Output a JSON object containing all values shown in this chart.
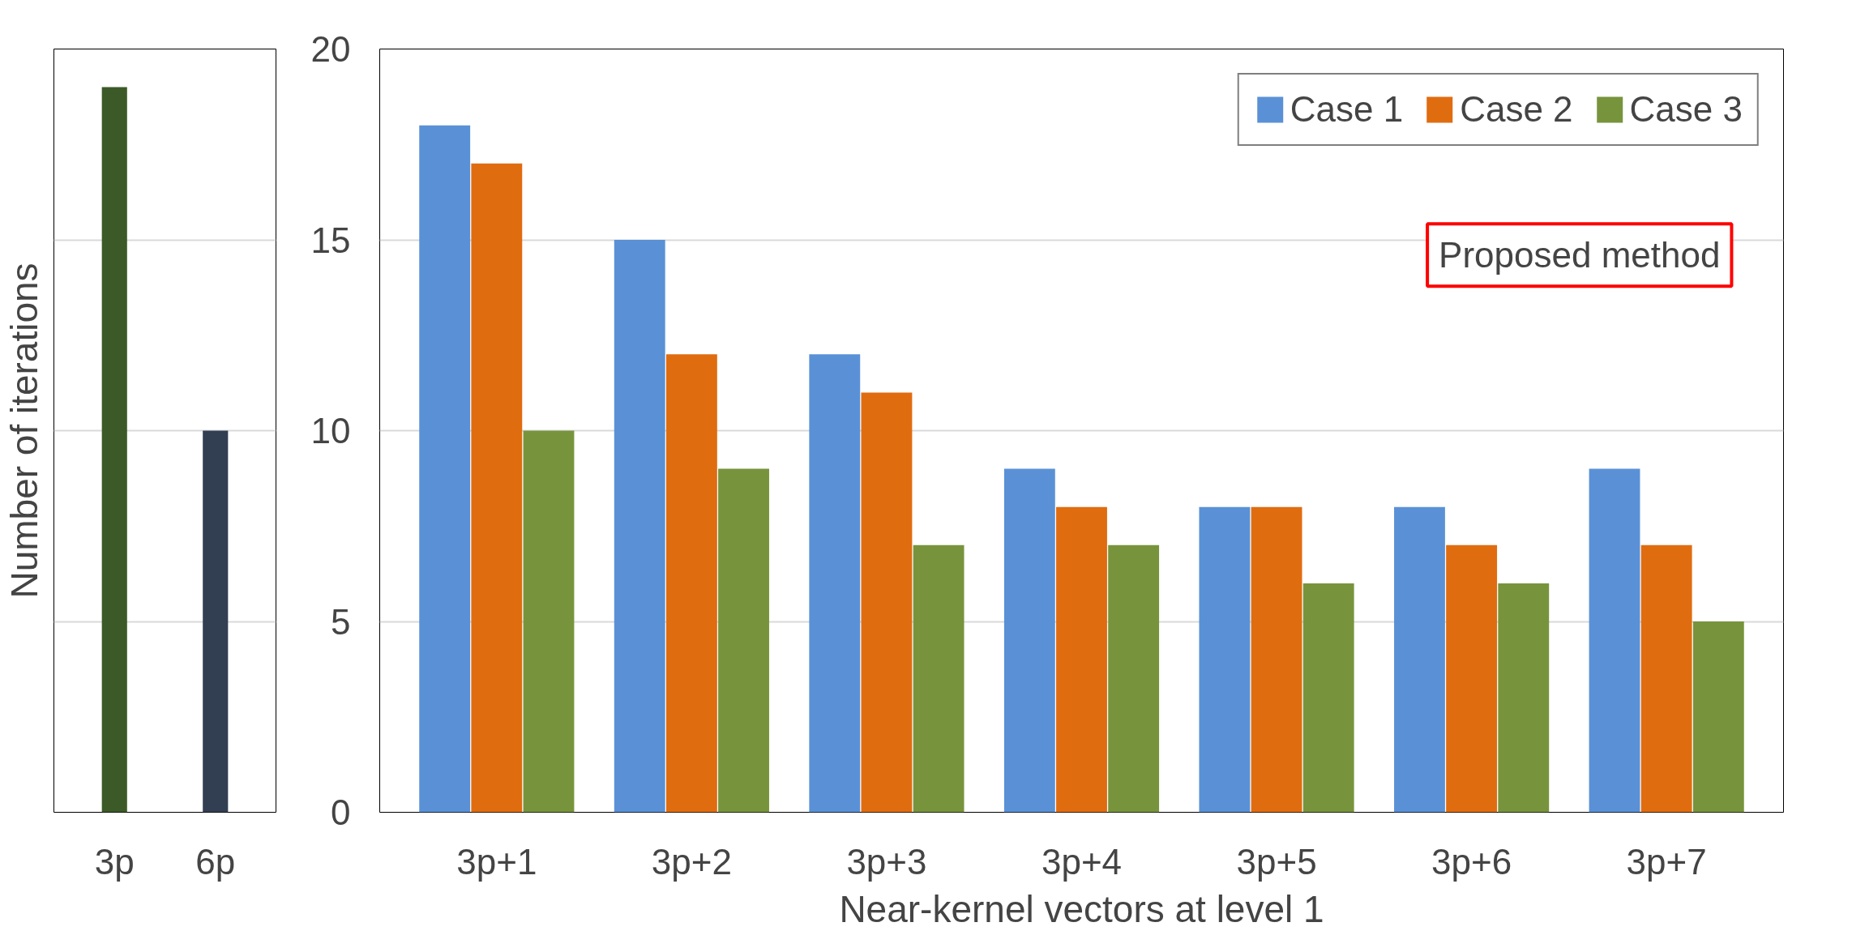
{
  "chart_data": [
    {
      "type": "bar",
      "ylabel": "Number of iterations",
      "categories": [
        "3p",
        "6p"
      ],
      "colors": [
        "#3b5a27",
        "#323f52"
      ],
      "values": [
        19,
        10
      ],
      "ylim": [
        0,
        20
      ],
      "yticks": [
        5,
        10,
        15
      ],
      "tick_labels": "x",
      "grid": "y",
      "legend": false
    },
    {
      "type": "bar",
      "xlabel": "Near-kernel vectors at level 1",
      "categories": [
        "3p+1",
        "3p+2",
        "3p+3",
        "3p+4",
        "3p+5",
        "3p+6",
        "3p+7"
      ],
      "series": [
        {
          "name": "Case 1",
          "color": "#5a91d6",
          "values": [
            18,
            15,
            12,
            9,
            8,
            8,
            9
          ]
        },
        {
          "name": "Case 2",
          "color": "#e06c10",
          "values": [
            17,
            12,
            11,
            8,
            8,
            7,
            7
          ]
        },
        {
          "name": "Case 3",
          "color": "#77943c",
          "values": [
            10,
            9,
            7,
            7,
            6,
            6,
            5
          ]
        }
      ],
      "ylim": [
        0,
        20
      ],
      "yticks": [
        0,
        5,
        10,
        15,
        20
      ],
      "grid": "y",
      "legend": "top right",
      "annotations": [
        "Proposed method"
      ]
    }
  ]
}
